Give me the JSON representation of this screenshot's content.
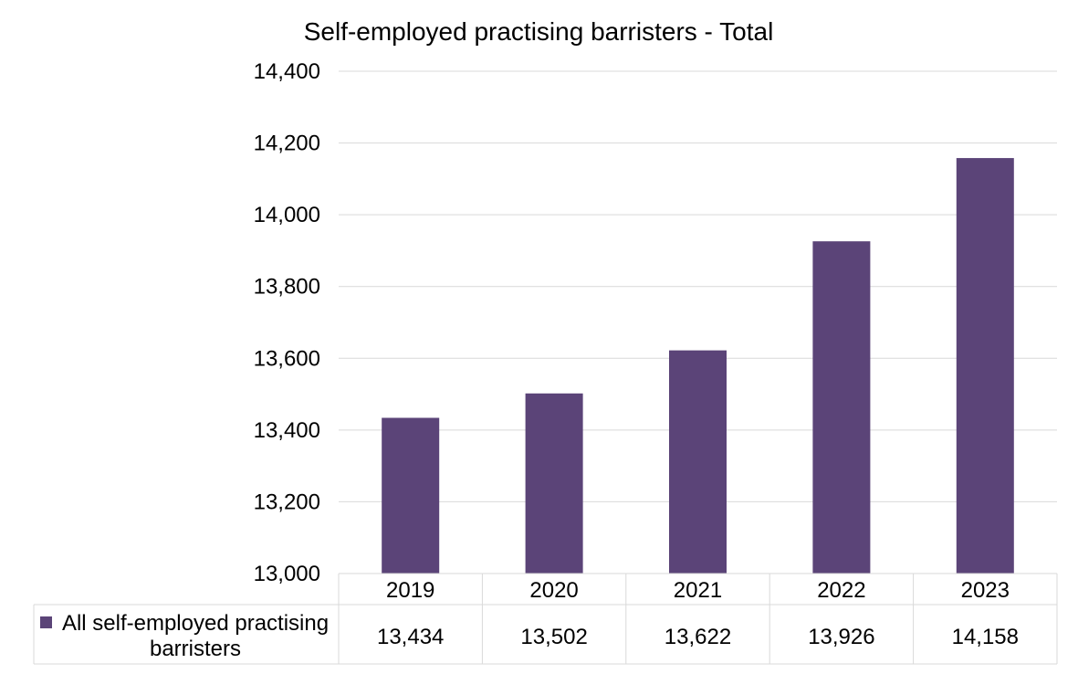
{
  "chart_data": {
    "type": "bar",
    "title": "Self-employed practising barristers - Total",
    "categories": [
      "2019",
      "2020",
      "2021",
      "2022",
      "2023"
    ],
    "series": [
      {
        "name": "All self-employed practising barristers",
        "values": [
          13434,
          13502,
          13622,
          13926,
          14158
        ],
        "value_labels": [
          "13,434",
          "13,502",
          "13,622",
          "13,926",
          "14,158"
        ]
      }
    ],
    "ylim": [
      13000,
      14400
    ],
    "yticks": [
      13000,
      13200,
      13400,
      13600,
      13800,
      14000,
      14200,
      14400
    ],
    "ytick_labels": [
      "13,000",
      "13,200",
      "13,400",
      "13,600",
      "13,800",
      "14,000",
      "14,200",
      "14,400"
    ],
    "grid": true,
    "legend": "data-table",
    "colors": {
      "bar": "#5b4478",
      "grid": "#d9d9d9",
      "table_border": "#d9d9d9"
    }
  }
}
